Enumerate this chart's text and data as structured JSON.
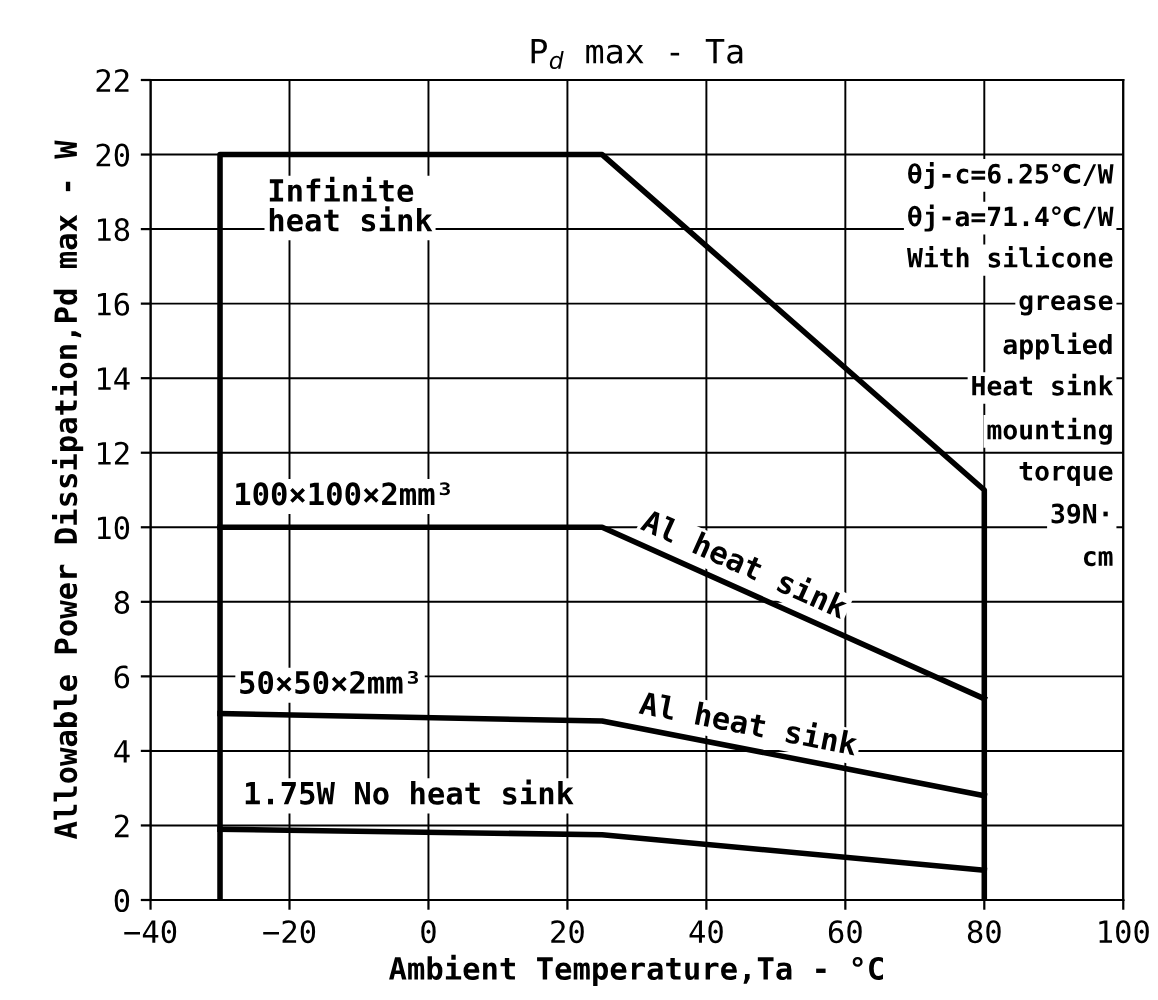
{
  "chart_data": {
    "type": "line",
    "title": "P$_{d}$ max - Ta",
    "xlabel": "Ambient Temperature,Ta - °C",
    "ylabel": "Allowable Power Dissipation,Pd max - W",
    "series": [
      {
        "color": "#000000",
        "x": [
          -30,
          -30,
          25,
          80,
          80
        ],
        "values": [
          0,
          20,
          20,
          11,
          0
        ]
      },
      {
        "color": "#000000",
        "x": [
          -30,
          25,
          80
        ],
        "values": [
          10,
          10,
          5.4
        ]
      },
      {
        "color": "#000000",
        "x": [
          -30,
          25,
          80
        ],
        "values": [
          5,
          4.8,
          2.8
        ]
      },
      {
        "color": "#000000",
        "x": [
          -30,
          25,
          80
        ],
        "values": [
          1.9,
          1.75,
          0.8
        ]
      }
    ],
    "annotations": [
      "Infinite\nheat sink",
      "100×100×2mm³",
      {
        "text": "Al heat sink",
        "x": 30,
        "y": 9.58
      },
      "50×50×2mm³",
      {
        "text": "Al heat sink",
        "x": 30,
        "y": 4.62
      },
      "1.75W No heat sink",
      "θj-c=6.25℃/W\nθj-a=71.4℃/W\nWith silicone\ngrease\napplied\nHeat sink\nmounting\ntorque\n39N·\ncm"
    ],
    "xlim": [
      -40,
      100
    ],
    "xticks": [
      -40,
      -20,
      0,
      20,
      40,
      60,
      80,
      100
    ],
    "ylim": [
      0,
      22
    ],
    "yticks": [
      0,
      2,
      4,
      6,
      8,
      10,
      12,
      14,
      16,
      18,
      20,
      22
    ],
    "grid": true,
    "line_style": "solid",
    "marker": "none"
  }
}
